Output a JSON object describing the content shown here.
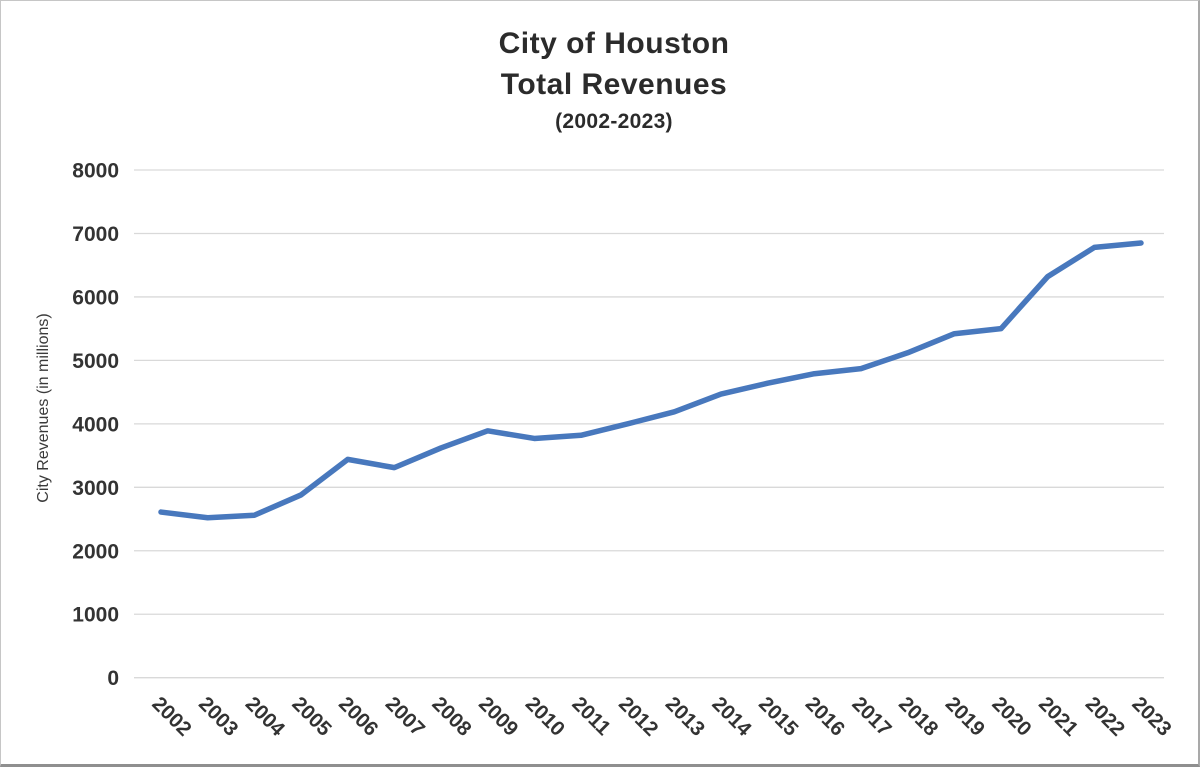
{
  "chart": {
    "title_line1": "City of Houston",
    "title_line2": "Total Revenues",
    "title_line3": "(2002-2023)"
  },
  "chart_data": {
    "type": "line",
    "title": "City of Houston Total Revenues (2002-2023)",
    "xlabel": "",
    "ylabel": "City Revenues (in millions)",
    "categories": [
      "2002",
      "2003",
      "2004",
      "2005",
      "2006",
      "2007",
      "2008",
      "2009",
      "2010",
      "2011",
      "2012",
      "2013",
      "2014",
      "2015",
      "2016",
      "2017",
      "2018",
      "2019",
      "2020",
      "2021",
      "2022",
      "2023"
    ],
    "series": [
      {
        "name": "Total Revenues",
        "values": [
          2610,
          2520,
          2560,
          2880,
          3440,
          3310,
          3620,
          3890,
          3770,
          3820,
          4000,
          4190,
          4470,
          4640,
          4790,
          4870,
          5120,
          5420,
          5500,
          6320,
          6780,
          6850
        ]
      }
    ],
    "ylim": [
      0,
      8000
    ],
    "yticks": [
      0,
      1000,
      2000,
      3000,
      4000,
      5000,
      6000,
      7000,
      8000
    ],
    "grid": true,
    "legend": false,
    "colors": {
      "line": "#4878bd",
      "gridline": "#d9d9d9",
      "axis_text": "#333333",
      "title_text": "#2b2b2b"
    }
  }
}
